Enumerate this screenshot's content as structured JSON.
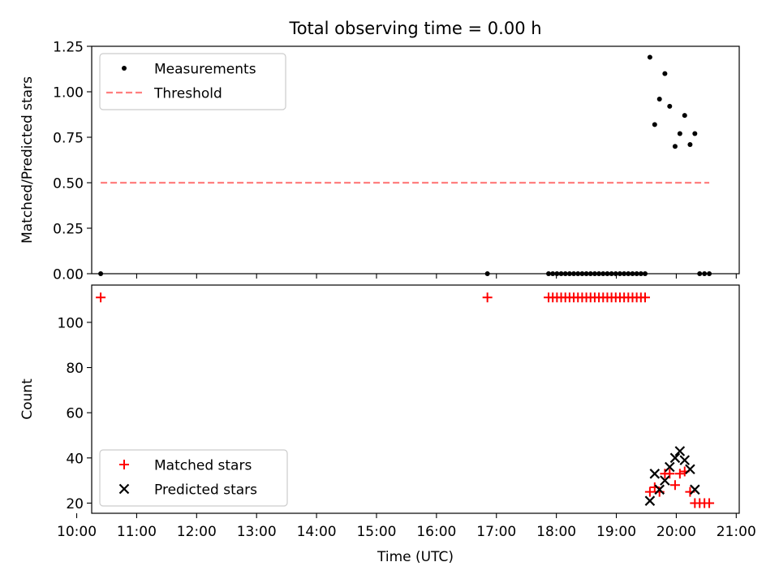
{
  "figure": {
    "title": "Total observing time = 0.00 h"
  },
  "chart_data": [
    {
      "type": "scatter",
      "panel": "top",
      "ylabel": "Matched/Predicted stars",
      "xlim": [
        10.25,
        21.05
      ],
      "ylim": [
        0,
        1.25
      ],
      "y_ticks": [
        0.0,
        0.25,
        0.5,
        0.75,
        1.0,
        1.25
      ],
      "y_tick_labels": [
        "0.00",
        "0.25",
        "0.50",
        "0.75",
        "1.00",
        "1.25"
      ],
      "x_tick_marks": [
        10,
        11,
        12,
        13,
        14,
        15,
        16,
        17,
        18,
        19,
        20,
        21
      ],
      "legend_position": "top-left",
      "series": [
        {
          "name": "Measurements",
          "marker": "dot",
          "color": "#000000",
          "points": [
            [
              10.4,
              0
            ],
            [
              16.85,
              0
            ],
            [
              17.87,
              0
            ],
            [
              17.94,
              0
            ],
            [
              18.01,
              0
            ],
            [
              18.08,
              0
            ],
            [
              18.15,
              0
            ],
            [
              18.22,
              0
            ],
            [
              18.29,
              0
            ],
            [
              18.36,
              0
            ],
            [
              18.43,
              0
            ],
            [
              18.5,
              0
            ],
            [
              18.57,
              0
            ],
            [
              18.64,
              0
            ],
            [
              18.71,
              0
            ],
            [
              18.78,
              0
            ],
            [
              18.85,
              0
            ],
            [
              18.92,
              0
            ],
            [
              18.99,
              0
            ],
            [
              19.06,
              0
            ],
            [
              19.13,
              0
            ],
            [
              19.2,
              0
            ],
            [
              19.27,
              0
            ],
            [
              19.34,
              0
            ],
            [
              19.41,
              0
            ],
            [
              19.48,
              0
            ],
            [
              19.56,
              1.19
            ],
            [
              19.64,
              0.82
            ],
            [
              19.72,
              0.96
            ],
            [
              19.81,
              1.1
            ],
            [
              19.89,
              0.92
            ],
            [
              19.98,
              0.7
            ],
            [
              20.06,
              0.77
            ],
            [
              20.14,
              0.87
            ],
            [
              20.23,
              0.71
            ],
            [
              20.31,
              0.77
            ],
            [
              20.39,
              0
            ],
            [
              20.47,
              0
            ],
            [
              20.55,
              0
            ]
          ]
        },
        {
          "name": "Threshold",
          "style": "dashed",
          "color": "#ff7f7f",
          "x": [
            10.4,
            20.55
          ],
          "y": [
            0.5,
            0.5
          ]
        }
      ]
    },
    {
      "type": "scatter",
      "panel": "bottom",
      "xlabel": "Time (UTC)",
      "ylabel": "Count",
      "xlim": [
        10.25,
        21.05
      ],
      "ylim": [
        15.5,
        116.5
      ],
      "y_ticks": [
        20,
        40,
        60,
        80,
        100
      ],
      "x_ticks": [
        10,
        11,
        12,
        13,
        14,
        15,
        16,
        17,
        18,
        19,
        20,
        21
      ],
      "x_tick_labels": [
        "10:00",
        "11:00",
        "12:00",
        "13:00",
        "14:00",
        "15:00",
        "16:00",
        "17:00",
        "18:00",
        "19:00",
        "20:00",
        "21:00"
      ],
      "legend_position": "bottom-left",
      "series": [
        {
          "name": "Matched stars",
          "marker": "plus",
          "color": "#ff0000",
          "points": [
            [
              10.4,
              111
            ],
            [
              16.85,
              111
            ],
            [
              17.87,
              111
            ],
            [
              17.94,
              111
            ],
            [
              18.01,
              111
            ],
            [
              18.08,
              111
            ],
            [
              18.15,
              111
            ],
            [
              18.22,
              111
            ],
            [
              18.29,
              111
            ],
            [
              18.36,
              111
            ],
            [
              18.43,
              111
            ],
            [
              18.5,
              111
            ],
            [
              18.57,
              111
            ],
            [
              18.64,
              111
            ],
            [
              18.71,
              111
            ],
            [
              18.78,
              111
            ],
            [
              18.85,
              111
            ],
            [
              18.92,
              111
            ],
            [
              18.99,
              111
            ],
            [
              19.06,
              111
            ],
            [
              19.13,
              111
            ],
            [
              19.2,
              111
            ],
            [
              19.27,
              111
            ],
            [
              19.34,
              111
            ],
            [
              19.41,
              111
            ],
            [
              19.48,
              111
            ],
            [
              19.56,
              25
            ],
            [
              19.64,
              27
            ],
            [
              19.72,
              25
            ],
            [
              19.81,
              33
            ],
            [
              19.89,
              33
            ],
            [
              19.98,
              28
            ],
            [
              20.06,
              33
            ],
            [
              20.14,
              34
            ],
            [
              20.23,
              25
            ],
            [
              20.31,
              20
            ],
            [
              20.39,
              20
            ],
            [
              20.47,
              20
            ],
            [
              20.55,
              20
            ]
          ]
        },
        {
          "name": "Predicted stars",
          "marker": "x",
          "color": "#000000",
          "points": [
            [
              19.56,
              21
            ],
            [
              19.64,
              33
            ],
            [
              19.72,
              26
            ],
            [
              19.81,
              30
            ],
            [
              19.89,
              36
            ],
            [
              19.98,
              40
            ],
            [
              20.06,
              43
            ],
            [
              20.14,
              39
            ],
            [
              20.23,
              35
            ],
            [
              20.31,
              26
            ]
          ]
        }
      ]
    }
  ]
}
